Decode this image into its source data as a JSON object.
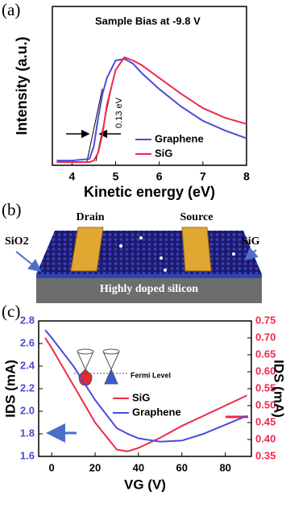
{
  "panel_labels": [
    "(a)",
    "(b)",
    "(c)"
  ],
  "chart_data": [
    {
      "type": "line",
      "xlabel": "Kinetic energy (eV)",
      "ylabel": "Intensity (a.u.)",
      "annotations": [
        "Sample Bias at -9.8  V",
        "0.13 eV"
      ],
      "x": [
        3.65,
        4.0,
        4.4,
        4.5,
        4.6,
        4.7,
        4.8,
        5.0,
        5.2,
        5.4,
        5.6,
        6.0,
        6.5,
        7.0,
        7.5,
        8.0
      ],
      "series": [
        {
          "name": "Graphene",
          "color": "#4b4bdc",
          "values": [
            0.03,
            0.03,
            0.04,
            0.12,
            0.3,
            0.45,
            0.55,
            0.66,
            0.67,
            0.64,
            0.58,
            0.48,
            0.37,
            0.28,
            0.22,
            0.17
          ]
        },
        {
          "name": "SiG",
          "color": "#ee2a4a",
          "values": [
            0.02,
            0.02,
            0.02,
            0.03,
            0.08,
            0.2,
            0.38,
            0.6,
            0.68,
            0.66,
            0.63,
            0.55,
            0.45,
            0.36,
            0.3,
            0.26
          ]
        }
      ],
      "xlim": [
        3.55,
        8
      ],
      "xticks": [
        4,
        5,
        6,
        7,
        8
      ],
      "ylim": [
        0,
        1
      ],
      "legend": "lower right"
    },
    {
      "type": "line",
      "xlabel": "VG (V)",
      "ylabel": "IDS (mA)",
      "y2label": "IDS (mA)",
      "annotations": [
        "Fermi Level"
      ],
      "x": [
        -3,
        0,
        10,
        20,
        30,
        35,
        40,
        50,
        60,
        70,
        80,
        90
      ],
      "series": [
        {
          "name": "SiG",
          "color": "#ee2a4a",
          "axis": "y2",
          "values": [
            0.7,
            0.67,
            0.56,
            0.45,
            0.37,
            0.365,
            0.375,
            0.405,
            0.44,
            0.47,
            0.5,
            0.53
          ]
        },
        {
          "name": "Graphene",
          "color": "#4b4bdc",
          "values": [
            2.72,
            2.65,
            2.4,
            2.1,
            1.85,
            1.8,
            1.76,
            1.73,
            1.74,
            1.8,
            1.88,
            1.96
          ]
        }
      ],
      "xlim": [
        -6,
        92
      ],
      "xticks": [
        0,
        20,
        40,
        60,
        80
      ],
      "ylim": [
        1.6,
        2.8
      ],
      "yticks": [
        1.6,
        1.8,
        {
          "value": 2,
          "label": "2.0"
        },
        2.2,
        2.4,
        2.6,
        2.8
      ],
      "y2lim": [
        0.35,
        0.75
      ],
      "y2ticks": [
        0.35,
        {
          "value": 0.4,
          "label": "0.40"
        },
        0.45,
        {
          "value": 0.5,
          "label": "0.50"
        },
        0.55,
        {
          "value": 0.6,
          "label": "0.60"
        },
        0.65,
        {
          "value": 0.7,
          "label": "0.70"
        },
        0.75
      ],
      "legend": "center"
    }
  ],
  "diagram": {
    "labels": [
      "Drain",
      "Source",
      "SiO2",
      "SiG",
      "Highly doped silicon"
    ]
  }
}
